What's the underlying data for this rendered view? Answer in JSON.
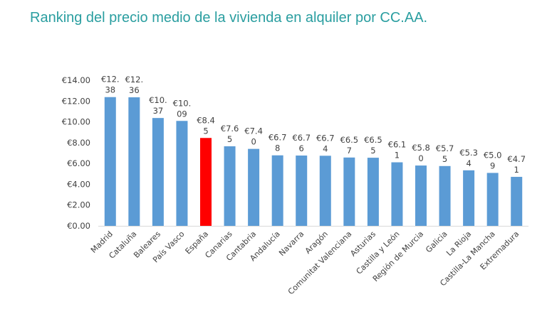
{
  "chart_data": {
    "type": "bar",
    "title": "Ranking del precio medio de la vivienda en alquiler por CC.AA.",
    "categories": [
      "Madrid",
      "Cataluña",
      "Baleares",
      "País Vasco",
      "España",
      "Canarias",
      "Cantabria",
      "Andalucía",
      "Navarra",
      "Aragón",
      "Comunitat Valenciana",
      "Asturias",
      "Castilla y León",
      "Región de Murcia",
      "Galicia",
      "La Rioja",
      "Castilla-La Mancha",
      "Extremadura"
    ],
    "values": [
      12.38,
      12.36,
      10.37,
      10.09,
      8.45,
      7.65,
      7.4,
      6.78,
      6.76,
      6.74,
      6.57,
      6.55,
      6.11,
      5.8,
      5.75,
      5.34,
      5.09,
      4.71
    ],
    "data_labels": [
      [
        "€12.",
        "38"
      ],
      [
        "€12.",
        "36"
      ],
      [
        "€10.",
        "37"
      ],
      [
        "€10.",
        "09"
      ],
      [
        "€8.4",
        "5"
      ],
      [
        "€7.6",
        "5"
      ],
      [
        "€7.4",
        "0"
      ],
      [
        "€6.7",
        "8"
      ],
      [
        "€6.7",
        "6"
      ],
      [
        "€6.7",
        "4"
      ],
      [
        "€6.5",
        "7"
      ],
      [
        "€6.5",
        "5"
      ],
      [
        "€6.1",
        "1"
      ],
      [
        "€5.8",
        "0"
      ],
      [
        "€5.7",
        "5"
      ],
      [
        "€5.3",
        "4"
      ],
      [
        "€5.0",
        "9"
      ],
      [
        "€4.7",
        "1"
      ]
    ],
    "yticks": [
      "€0.00",
      "€2.00",
      "€4.00",
      "€6.00",
      "€8.00",
      "€10.00",
      "€12.00",
      "€14.00"
    ],
    "ylim": [
      0,
      14
    ],
    "xlabel": "",
    "ylabel": "",
    "grid": false,
    "colors": {
      "default": "#5b9bd5",
      "highlight": "#ff0000"
    },
    "highlight_category": "España"
  }
}
